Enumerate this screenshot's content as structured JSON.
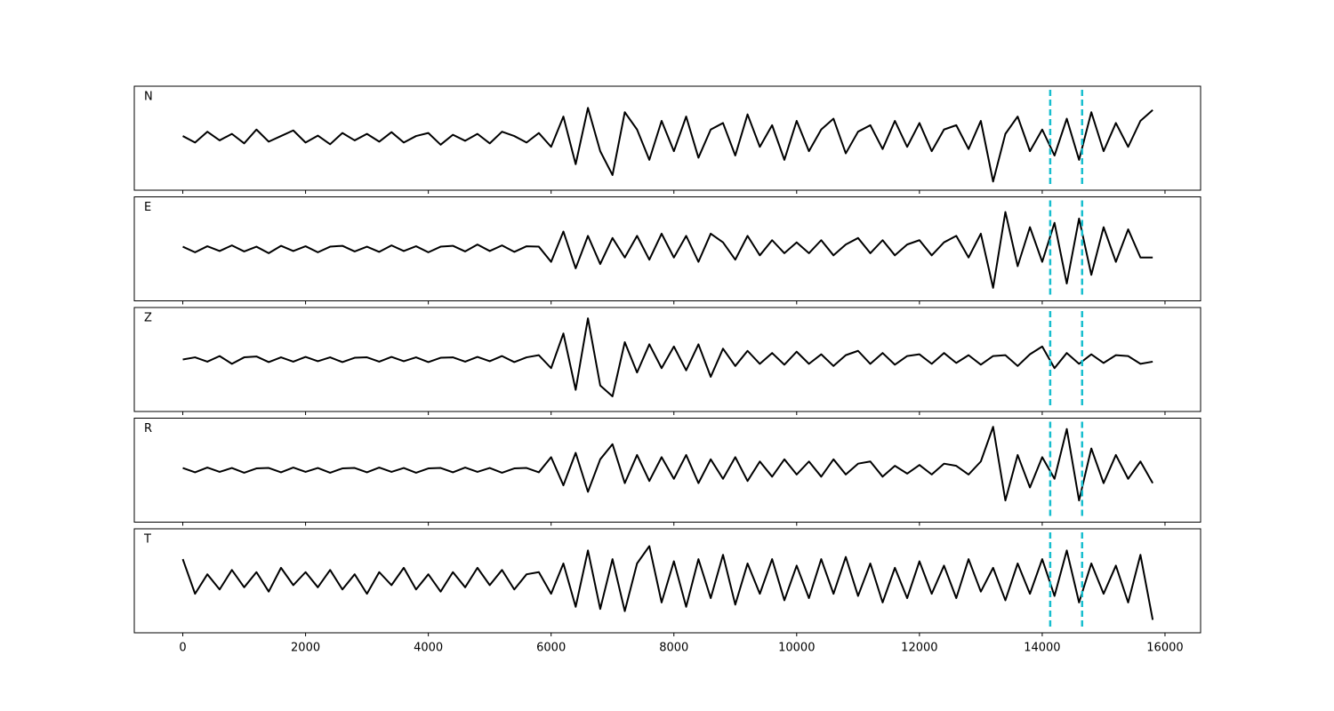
{
  "chart_data": [
    {
      "type": "line",
      "label": "N",
      "color": "#000000",
      "vlines": [
        14130,
        14650
      ],
      "vline_color": "#17becf",
      "xlim": [
        -790,
        16580
      ],
      "xticks": [
        0,
        2000,
        4000,
        6000,
        8000,
        10000,
        12000,
        14000,
        16000
      ],
      "ylim": [
        -1.2,
        1.2
      ],
      "x": [
        0,
        200,
        400,
        600,
        800,
        1000,
        1200,
        1400,
        1600,
        1800,
        2000,
        2200,
        2400,
        2600,
        2800,
        3000,
        3200,
        3400,
        3600,
        3800,
        4000,
        4200,
        4400,
        4600,
        4800,
        5000,
        5200,
        5400,
        5600,
        5800,
        6000,
        6200,
        6400,
        6600,
        6800,
        7000,
        7200,
        7400,
        7600,
        7800,
        8000,
        8200,
        8400,
        8600,
        8800,
        9000,
        9200,
        9400,
        9600,
        9800,
        10000,
        10200,
        10400,
        10600,
        10800,
        11000,
        11200,
        11400,
        11600,
        11800,
        12000,
        12200,
        12400,
        12600,
        12800,
        13000,
        13200,
        13400,
        13600,
        13800,
        14000,
        14200,
        14400,
        14600,
        14800,
        15000,
        15200,
        15400,
        15600,
        15800
      ],
      "values": [
        0.05,
        -0.1,
        0.15,
        -0.05,
        0.1,
        -0.12,
        0.2,
        -0.08,
        0.05,
        0.18,
        -0.1,
        0.06,
        -0.14,
        0.12,
        -0.05,
        0.1,
        -0.08,
        0.14,
        -0.1,
        0.05,
        0.12,
        -0.15,
        0.08,
        -0.06,
        0.1,
        -0.12,
        0.15,
        0.05,
        -0.1,
        0.12,
        -0.2,
        0.5,
        -0.6,
        0.7,
        -0.3,
        -0.85,
        0.6,
        0.2,
        -0.5,
        0.4,
        -0.3,
        0.5,
        -0.45,
        0.2,
        0.35,
        -0.4,
        0.55,
        -0.2,
        0.3,
        -0.5,
        0.4,
        -0.3,
        0.2,
        0.45,
        -0.35,
        0.15,
        0.3,
        -0.25,
        0.4,
        -0.2,
        0.35,
        -0.3,
        0.2,
        0.3,
        -0.25,
        0.4,
        -1.0,
        0.1,
        0.5,
        -0.3,
        0.2,
        -0.4,
        0.45,
        -0.5,
        0.6,
        -0.3,
        0.35,
        -0.2,
        0.4,
        0.65
      ]
    },
    {
      "type": "line",
      "label": "E",
      "color": "#000000",
      "vlines": [
        14130,
        14650
      ],
      "vline_color": "#17becf",
      "xlim": [
        -790,
        16580
      ],
      "xticks": [
        0,
        2000,
        4000,
        6000,
        8000,
        10000,
        12000,
        14000,
        16000
      ],
      "ylim": [
        -1.2,
        1.2
      ],
      "x": [
        0,
        200,
        400,
        600,
        800,
        1000,
        1200,
        1400,
        1600,
        1800,
        2000,
        2200,
        2400,
        2600,
        2800,
        3000,
        3200,
        3400,
        3600,
        3800,
        4000,
        4200,
        4400,
        4600,
        4800,
        5000,
        5200,
        5400,
        5600,
        5800,
        6000,
        6200,
        6400,
        6600,
        6800,
        7000,
        7200,
        7400,
        7600,
        7800,
        8000,
        8200,
        8400,
        8600,
        8800,
        9000,
        9200,
        9400,
        9600,
        9800,
        10000,
        10200,
        10400,
        10600,
        10800,
        11000,
        11200,
        11400,
        11600,
        11800,
        12000,
        12200,
        12400,
        12600,
        12800,
        13000,
        13200,
        13400,
        13600,
        13800,
        14000,
        14200,
        14400,
        14600,
        14800,
        15000,
        15200,
        15400,
        15600,
        15800
      ],
      "values": [
        0.05,
        -0.08,
        0.06,
        -0.05,
        0.08,
        -0.06,
        0.05,
        -0.1,
        0.07,
        -0.05,
        0.06,
        -0.08,
        0.05,
        0.07,
        -0.06,
        0.05,
        -0.07,
        0.08,
        -0.05,
        0.06,
        -0.08,
        0.05,
        0.07,
        -0.06,
        0.1,
        -0.05,
        0.08,
        -0.07,
        0.06,
        0.05,
        -0.3,
        0.4,
        -0.45,
        0.3,
        -0.35,
        0.25,
        -0.2,
        0.3,
        -0.25,
        0.35,
        -0.2,
        0.3,
        -0.3,
        0.35,
        0.15,
        -0.25,
        0.3,
        -0.15,
        0.2,
        -0.1,
        0.15,
        -0.1,
        0.2,
        -0.15,
        0.1,
        0.25,
        -0.1,
        0.2,
        -0.15,
        0.1,
        0.2,
        -0.15,
        0.15,
        0.3,
        -0.2,
        0.35,
        -0.9,
        0.85,
        -0.4,
        0.5,
        -0.3,
        0.6,
        -0.8,
        0.7,
        -0.6,
        0.5,
        -0.3,
        0.45,
        -0.2,
        -0.2
      ]
    },
    {
      "type": "line",
      "label": "Z",
      "color": "#000000",
      "vlines": [
        14130,
        14650
      ],
      "vline_color": "#17becf",
      "xlim": [
        -790,
        16580
      ],
      "xticks": [
        0,
        2000,
        4000,
        6000,
        8000,
        10000,
        12000,
        14000,
        16000
      ],
      "ylim": [
        -1.2,
        1.2
      ],
      "x": [
        0,
        200,
        400,
        600,
        800,
        1000,
        1200,
        1400,
        1600,
        1800,
        2000,
        2200,
        2400,
        2600,
        2800,
        3000,
        3200,
        3400,
        3600,
        3800,
        4000,
        4200,
        4400,
        4600,
        4800,
        5000,
        5200,
        5400,
        5600,
        5800,
        6000,
        6200,
        6400,
        6600,
        6800,
        7000,
        7200,
        7400,
        7600,
        7800,
        8000,
        8200,
        8400,
        8600,
        8800,
        9000,
        9200,
        9400,
        9600,
        9800,
        10000,
        10200,
        10400,
        10600,
        10800,
        11000,
        11200,
        11400,
        11600,
        11800,
        12000,
        12200,
        12400,
        12600,
        12800,
        13000,
        13200,
        13400,
        13600,
        13800,
        14000,
        14200,
        14400,
        14600,
        14800,
        15000,
        15200,
        15400,
        15600,
        15800
      ],
      "values": [
        0,
        0.05,
        -0.05,
        0.08,
        -0.1,
        0.05,
        0.07,
        -0.06,
        0.05,
        -0.05,
        0.06,
        -0.04,
        0.05,
        -0.06,
        0.04,
        0.05,
        -0.05,
        0.06,
        -0.04,
        0.05,
        -0.06,
        0.04,
        0.05,
        -0.05,
        0.06,
        -0.04,
        0.08,
        -0.06,
        0.05,
        0.1,
        -0.2,
        0.6,
        -0.7,
        0.95,
        -0.6,
        -0.85,
        0.4,
        -0.3,
        0.35,
        -0.2,
        0.3,
        -0.25,
        0.35,
        -0.4,
        0.25,
        -0.15,
        0.2,
        -0.1,
        0.15,
        -0.12,
        0.18,
        -0.1,
        0.12,
        -0.15,
        0.1,
        0.2,
        -0.1,
        0.15,
        -0.12,
        0.08,
        0.12,
        -0.1,
        0.15,
        -0.08,
        0.1,
        -0.12,
        0.08,
        0.1,
        -0.15,
        0.12,
        0.3,
        -0.2,
        0.15,
        -0.1,
        0.12,
        -0.08,
        0.1,
        0.08,
        -0.1,
        -0.05
      ]
    },
    {
      "type": "line",
      "label": "R",
      "color": "#000000",
      "vlines": [
        14130,
        14650
      ],
      "vline_color": "#17becf",
      "xlim": [
        -790,
        16580
      ],
      "xticks": [
        0,
        2000,
        4000,
        6000,
        8000,
        10000,
        12000,
        14000,
        16000
      ],
      "ylim": [
        -1.2,
        1.2
      ],
      "x": [
        0,
        200,
        400,
        600,
        800,
        1000,
        1200,
        1400,
        1600,
        1800,
        2000,
        2200,
        2400,
        2600,
        2800,
        3000,
        3200,
        3400,
        3600,
        3800,
        4000,
        4200,
        4400,
        4600,
        4800,
        5000,
        5200,
        5400,
        5600,
        5800,
        6000,
        6200,
        6400,
        6600,
        6800,
        7000,
        7200,
        7400,
        7600,
        7800,
        8000,
        8200,
        8400,
        8600,
        8800,
        9000,
        9200,
        9400,
        9600,
        9800,
        10000,
        10200,
        10400,
        10600,
        10800,
        11000,
        11200,
        11400,
        11600,
        11800,
        12000,
        12200,
        12400,
        12600,
        12800,
        13000,
        13200,
        13400,
        13600,
        13800,
        14000,
        14200,
        14400,
        14600,
        14800,
        15000,
        15200,
        15400,
        15600,
        15800
      ],
      "values": [
        0.05,
        -0.05,
        0.06,
        -0.04,
        0.05,
        -0.06,
        0.04,
        0.05,
        -0.05,
        0.06,
        -0.04,
        0.05,
        -0.06,
        0.04,
        0.05,
        -0.05,
        0.06,
        -0.04,
        0.05,
        -0.06,
        0.04,
        0.05,
        -0.05,
        0.06,
        -0.04,
        0.05,
        -0.06,
        0.04,
        0.05,
        -0.05,
        0.3,
        -0.35,
        0.4,
        -0.5,
        0.25,
        0.6,
        -0.3,
        0.35,
        -0.25,
        0.3,
        -0.2,
        0.35,
        -0.3,
        0.25,
        -0.2,
        0.3,
        -0.25,
        0.2,
        -0.15,
        0.25,
        -0.1,
        0.2,
        -0.15,
        0.25,
        -0.1,
        0.15,
        0.2,
        -0.15,
        0.1,
        -0.08,
        0.12,
        -0.1,
        0.15,
        0.1,
        -0.1,
        0.2,
        1.0,
        -0.7,
        0.35,
        -0.4,
        0.3,
        -0.2,
        0.95,
        -0.7,
        0.5,
        -0.3,
        0.35,
        -0.2,
        0.2,
        -0.3
      ]
    },
    {
      "type": "line",
      "label": "T",
      "color": "#000000",
      "vlines": [
        14130,
        14650
      ],
      "vline_color": "#17becf",
      "xlim": [
        -790,
        16580
      ],
      "xticks": [
        0,
        2000,
        4000,
        6000,
        8000,
        10000,
        12000,
        14000,
        16000
      ],
      "ylim": [
        -1.2,
        1.2
      ],
      "x": [
        0,
        200,
        400,
        600,
        800,
        1000,
        1200,
        1400,
        1600,
        1800,
        2000,
        2200,
        2400,
        2600,
        2800,
        3000,
        3200,
        3400,
        3600,
        3800,
        4000,
        4200,
        4400,
        4600,
        4800,
        5000,
        5200,
        5400,
        5600,
        5800,
        6000,
        6200,
        6400,
        6600,
        6800,
        7000,
        7200,
        7400,
        7600,
        7800,
        8000,
        8200,
        8400,
        8600,
        8800,
        9000,
        9200,
        9400,
        9600,
        9800,
        10000,
        10200,
        10400,
        10600,
        10800,
        11000,
        11200,
        11400,
        11600,
        11800,
        12000,
        12200,
        12400,
        12600,
        12800,
        13000,
        13200,
        13400,
        13600,
        13800,
        14000,
        14200,
        14400,
        14600,
        14800,
        15000,
        15200,
        15400,
        15600,
        15800
      ],
      "values": [
        0.5,
        -0.3,
        0.15,
        -0.2,
        0.25,
        -0.15,
        0.2,
        -0.25,
        0.3,
        -0.1,
        0.2,
        -0.15,
        0.25,
        -0.2,
        0.15,
        -0.3,
        0.2,
        -0.1,
        0.3,
        -0.2,
        0.15,
        -0.25,
        0.2,
        -0.15,
        0.3,
        -0.1,
        0.25,
        -0.2,
        0.15,
        0.2,
        -0.3,
        0.4,
        -0.6,
        0.7,
        -0.65,
        0.5,
        -0.7,
        0.4,
        0.8,
        -0.5,
        0.45,
        -0.6,
        0.5,
        -0.4,
        0.6,
        -0.55,
        0.4,
        -0.3,
        0.5,
        -0.45,
        0.35,
        -0.4,
        0.5,
        -0.3,
        0.55,
        -0.35,
        0.4,
        -0.5,
        0.3,
        -0.4,
        0.45,
        -0.3,
        0.35,
        -0.4,
        0.5,
        -0.25,
        0.3,
        -0.45,
        0.4,
        -0.3,
        0.5,
        -0.35,
        0.7,
        -0.5,
        0.4,
        -0.3,
        0.35,
        -0.5,
        0.6,
        -0.9
      ]
    }
  ]
}
